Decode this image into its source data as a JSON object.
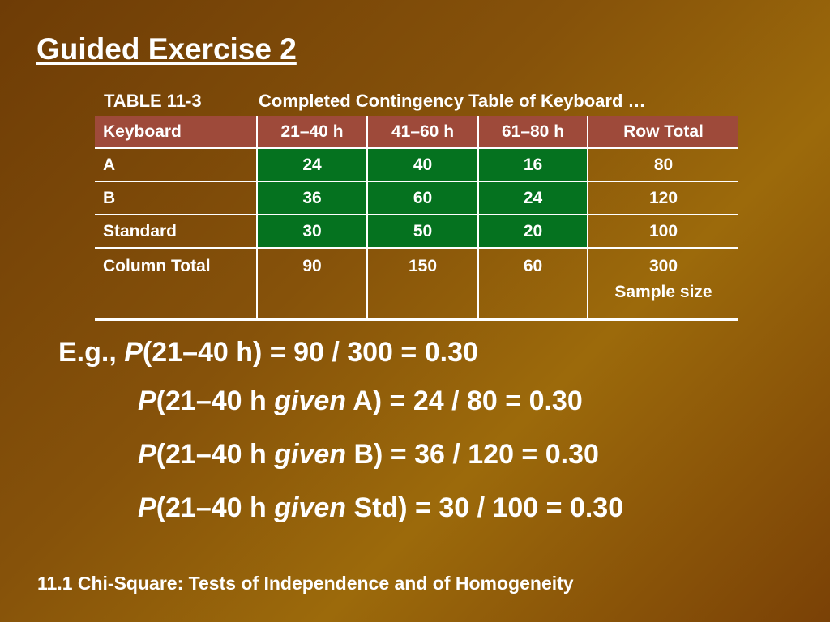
{
  "title": "Guided Exercise 2",
  "table": {
    "caption_number": "TABLE 11-3",
    "caption_text": "Completed Contingency Table of Keyboard …",
    "headers": [
      "Keyboard",
      "21–40 h",
      "41–60 h",
      "61–80 h",
      "Row Total"
    ],
    "rows": [
      [
        "A",
        "24",
        "40",
        "16",
        "80"
      ],
      [
        "B",
        "36",
        "60",
        "24",
        "120"
      ],
      [
        "Standard",
        "30",
        "50",
        "20",
        "100"
      ]
    ],
    "total_row": {
      "label": "Column Total",
      "values": [
        "90",
        "150",
        "60",
        "300"
      ],
      "note": "Sample size"
    }
  },
  "equations": [
    {
      "prefix": "E.g., ",
      "p": "P",
      "before": "(21–40 h",
      "given": "",
      "after": ") = 90 / 300 = 0.30"
    },
    {
      "prefix": "",
      "p": "P",
      "before": "(21–40 h ",
      "given": "given",
      "after": " A) = 24 / 80 = 0.30"
    },
    {
      "prefix": "",
      "p": "P",
      "before": "(21–40 h ",
      "given": "given",
      "after": " B) = 36 / 120 = 0.30"
    },
    {
      "prefix": "",
      "p": "P",
      "before": "(21–40 h ",
      "given": "given",
      "after": " Std) = 30 / 100 = 0.30"
    }
  ],
  "footer": "11.1 Chi-Square: Tests of Independence and of Homogeneity",
  "colors": {
    "header_row": "#9e4a3a",
    "cell_highlight": "#05721f",
    "text": "#ffffff"
  }
}
